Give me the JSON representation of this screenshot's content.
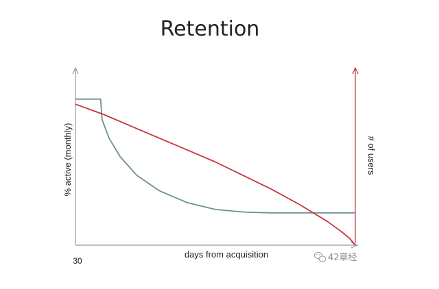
{
  "chart_data": {
    "type": "line",
    "title": "Retention",
    "xlabel": "days from acquisition",
    "ylabel": "% active (monthly)",
    "y2label": "# of users",
    "x_ticks": [
      "30"
    ],
    "grid": false,
    "legend": "none",
    "series": [
      {
        "name": "",
        "axis": "left",
        "color": "#6f8f92",
        "points": [
          [
            0,
            0.86
          ],
          [
            0.09,
            0.86
          ],
          [
            0.095,
            0.74
          ],
          [
            0.12,
            0.63
          ],
          [
            0.16,
            0.52
          ],
          [
            0.22,
            0.41
          ],
          [
            0.3,
            0.32
          ],
          [
            0.4,
            0.25
          ],
          [
            0.5,
            0.21
          ],
          [
            0.6,
            0.195
          ],
          [
            0.7,
            0.19
          ],
          [
            0.8,
            0.19
          ],
          [
            0.9,
            0.19
          ],
          [
            1.0,
            0.19
          ]
        ]
      },
      {
        "name": "",
        "axis": "right",
        "color": "#c8323c",
        "points": [
          [
            0,
            0.83
          ],
          [
            0.1,
            0.77
          ],
          [
            0.2,
            0.7
          ],
          [
            0.3,
            0.63
          ],
          [
            0.4,
            0.56
          ],
          [
            0.5,
            0.49
          ],
          [
            0.6,
            0.41
          ],
          [
            0.7,
            0.33
          ],
          [
            0.8,
            0.24
          ],
          [
            0.85,
            0.19
          ],
          [
            0.9,
            0.14
          ],
          [
            0.95,
            0.08
          ],
          [
            0.98,
            0.04
          ],
          [
            1.0,
            0.0
          ]
        ]
      }
    ]
  },
  "watermark": {
    "text": "42章经"
  }
}
